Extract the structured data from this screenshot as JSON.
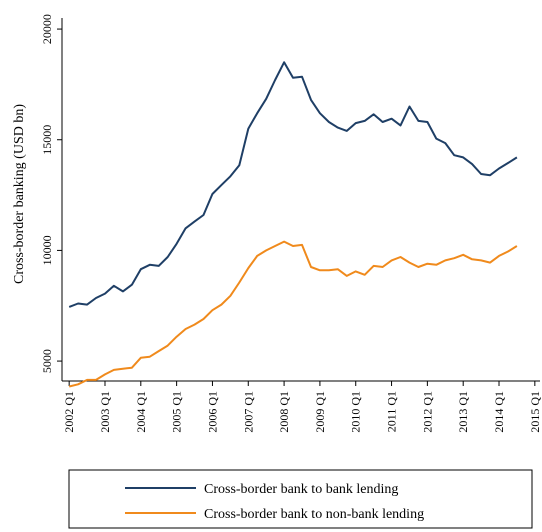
{
  "chart_data": {
    "type": "line",
    "title": "",
    "xlabel": "",
    "ylabel": "Cross-border banking (USD bn)",
    "xlim": [
      2001.8,
      2015.2
    ],
    "ylim": [
      4100,
      20500
    ],
    "y_ticks": [
      5000,
      10000,
      15000,
      20000
    ],
    "x_ticks": [
      {
        "value": 2002,
        "label": "2002 Q1"
      },
      {
        "value": 2003,
        "label": "2003 Q1"
      },
      {
        "value": 2004,
        "label": "2004 Q1"
      },
      {
        "value": 2005,
        "label": "2005 Q1"
      },
      {
        "value": 2006,
        "label": "2006 Q1"
      },
      {
        "value": 2007,
        "label": "2007 Q1"
      },
      {
        "value": 2008,
        "label": "2008 Q1"
      },
      {
        "value": 2009,
        "label": "2009 Q1"
      },
      {
        "value": 2010,
        "label": "2010 Q1"
      },
      {
        "value": 2011,
        "label": "2011 Q1"
      },
      {
        "value": 2012,
        "label": "2012 Q1"
      },
      {
        "value": 2013,
        "label": "2013 Q1"
      },
      {
        "value": 2014,
        "label": "2014 Q1"
      },
      {
        "value": 2015,
        "label": "2015 Q1"
      }
    ],
    "grid": false,
    "legend_position": "bottom",
    "x": [
      2002.0,
      2002.25,
      2002.5,
      2002.75,
      2003.0,
      2003.25,
      2003.5,
      2003.75,
      2004.0,
      2004.25,
      2004.5,
      2004.75,
      2005.0,
      2005.25,
      2005.5,
      2005.75,
      2006.0,
      2006.25,
      2006.5,
      2006.75,
      2007.0,
      2007.25,
      2007.5,
      2007.75,
      2008.0,
      2008.25,
      2008.5,
      2008.75,
      2009.0,
      2009.25,
      2009.5,
      2009.75,
      2010.0,
      2010.25,
      2010.5,
      2010.75,
      2011.0,
      2011.25,
      2011.5,
      2011.75,
      2012.0,
      2012.25,
      2012.5,
      2012.75,
      2013.0,
      2013.25,
      2013.5,
      2013.75,
      2014.0,
      2014.25,
      2014.5
    ],
    "series": [
      {
        "name": "Cross-border bank to bank lending",
        "color": "#1f3f66",
        "values": [
          7450,
          7600,
          7550,
          7850,
          8050,
          8400,
          8150,
          8450,
          9150,
          9350,
          9300,
          9700,
          10300,
          11000,
          11300,
          11600,
          12550,
          12950,
          13350,
          13850,
          15500,
          16200,
          16850,
          17700,
          18500,
          17800,
          17850,
          16800,
          16200,
          15800,
          15550,
          15400,
          15750,
          15850,
          16150,
          15800,
          15950,
          15650,
          16500,
          15850,
          15800,
          15050,
          14850,
          14300,
          14200,
          13900,
          13450,
          13400,
          13700,
          13950,
          14200
        ]
      },
      {
        "name": "Cross-border bank to non-bank lending",
        "color": "#f08a1c",
        "values": [
          3850,
          3950,
          4150,
          4150,
          4400,
          4600,
          4650,
          4700,
          5150,
          5200,
          5450,
          5700,
          6100,
          6450,
          6650,
          6900,
          7300,
          7550,
          7950,
          8550,
          9200,
          9750,
          10000,
          10200,
          10400,
          10200,
          10250,
          9250,
          9100,
          9100,
          9150,
          8850,
          9050,
          8900,
          9300,
          9250,
          9550,
          9700,
          9450,
          9250,
          9400,
          9350,
          9550,
          9650,
          9800,
          9600,
          9550,
          9450,
          9750,
          9950,
          10200
        ]
      }
    ]
  }
}
